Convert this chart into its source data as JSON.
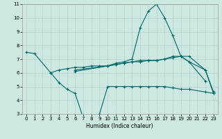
{
  "title": "",
  "xlabel": "Humidex (Indice chaleur)",
  "xlim": [
    -0.5,
    23.5
  ],
  "ylim": [
    3,
    11
  ],
  "xticks": [
    0,
    1,
    2,
    3,
    4,
    5,
    6,
    7,
    8,
    9,
    10,
    11,
    12,
    13,
    14,
    15,
    16,
    17,
    18,
    19,
    20,
    21,
    22,
    23
  ],
  "yticks": [
    3,
    4,
    5,
    6,
    7,
    8,
    9,
    10,
    11
  ],
  "bg_color": "#cce8e0",
  "line_color": "#006868",
  "lines": [
    {
      "x": [
        0,
        1,
        3,
        4,
        5,
        6,
        7,
        8,
        9,
        10,
        11,
        12,
        13,
        14,
        15,
        16,
        17,
        18,
        19,
        20,
        22,
        23
      ],
      "y": [
        7.5,
        7.4,
        6.0,
        6.2,
        6.3,
        6.4,
        6.4,
        6.5,
        6.5,
        6.5,
        6.6,
        6.7,
        6.8,
        6.8,
        6.9,
        6.9,
        7.0,
        7.2,
        7.2,
        6.8,
        6.2,
        4.6
      ]
    },
    {
      "x": [
        3,
        4,
        5,
        6,
        7,
        8,
        9,
        10,
        11,
        12,
        13,
        14,
        15,
        16,
        17,
        18,
        19,
        20,
        22,
        23
      ],
      "y": [
        6.0,
        5.3,
        4.8,
        4.5,
        2.7,
        2.7,
        3.0,
        5.0,
        5.0,
        5.0,
        5.0,
        5.0,
        5.0,
        5.0,
        5.0,
        4.9,
        4.8,
        4.8,
        4.6,
        4.5
      ]
    },
    {
      "x": [
        6,
        10,
        11,
        12,
        13,
        14,
        15,
        16,
        17,
        18,
        19,
        20,
        22
      ],
      "y": [
        6.2,
        6.5,
        6.7,
        6.8,
        7.0,
        9.3,
        10.5,
        11.0,
        10.0,
        8.7,
        7.2,
        6.8,
        5.4
      ]
    },
    {
      "x": [
        6,
        10,
        11,
        12,
        13,
        14,
        15,
        16,
        17,
        18,
        19,
        20,
        22,
        23
      ],
      "y": [
        6.1,
        6.5,
        6.6,
        6.7,
        6.8,
        6.9,
        6.9,
        6.9,
        7.0,
        7.1,
        7.2,
        7.2,
        6.2,
        4.5
      ]
    }
  ]
}
